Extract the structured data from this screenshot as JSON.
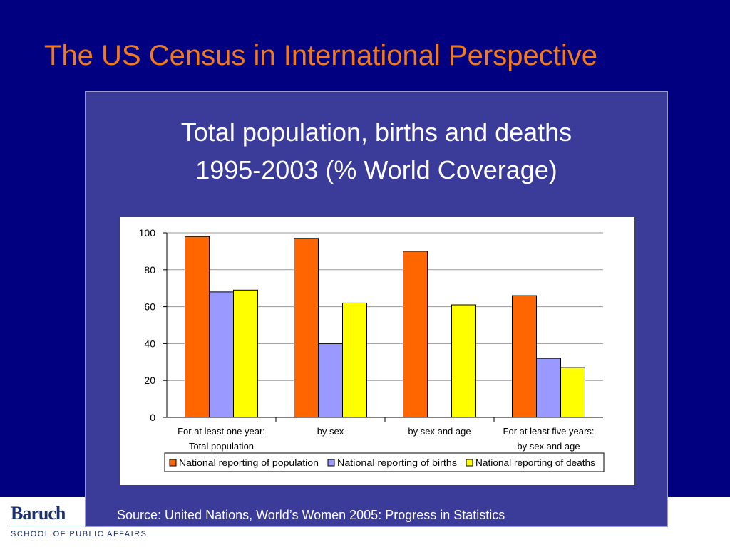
{
  "slide": {
    "title": "The US Census in International Perspective",
    "logo_text": "Baruch",
    "school": "SCHOOL OF PUBLIC AFFAIRS"
  },
  "panel": {
    "title_line1": "Total population, births and deaths",
    "title_line2": "1995-2003 (% World Coverage)",
    "source": "Source: United Nations,  World’s Women 2005:  Progress in Statistics"
  },
  "colors": {
    "population": "#ff6600",
    "births": "#9999ff",
    "deaths": "#ffff00",
    "title": "#f07a1c"
  },
  "chart_data": {
    "type": "bar",
    "categories": [
      [
        "For at least one year:",
        "Total population"
      ],
      [
        "by sex"
      ],
      [
        "by sex and age"
      ],
      [
        "For at least five years:",
        "by sex and age"
      ]
    ],
    "series": [
      {
        "name": "National reporting of population",
        "values": [
          98,
          97,
          90,
          66
        ]
      },
      {
        "name": "National reporting of births",
        "values": [
          68,
          40,
          null,
          32
        ]
      },
      {
        "name": "National reporting of deaths",
        "values": [
          69,
          62,
          61,
          27
        ]
      }
    ],
    "yticks": [
      0,
      20,
      40,
      60,
      80,
      100
    ],
    "ylim": [
      0,
      100
    ],
    "grid": true,
    "legend": "bottom"
  }
}
